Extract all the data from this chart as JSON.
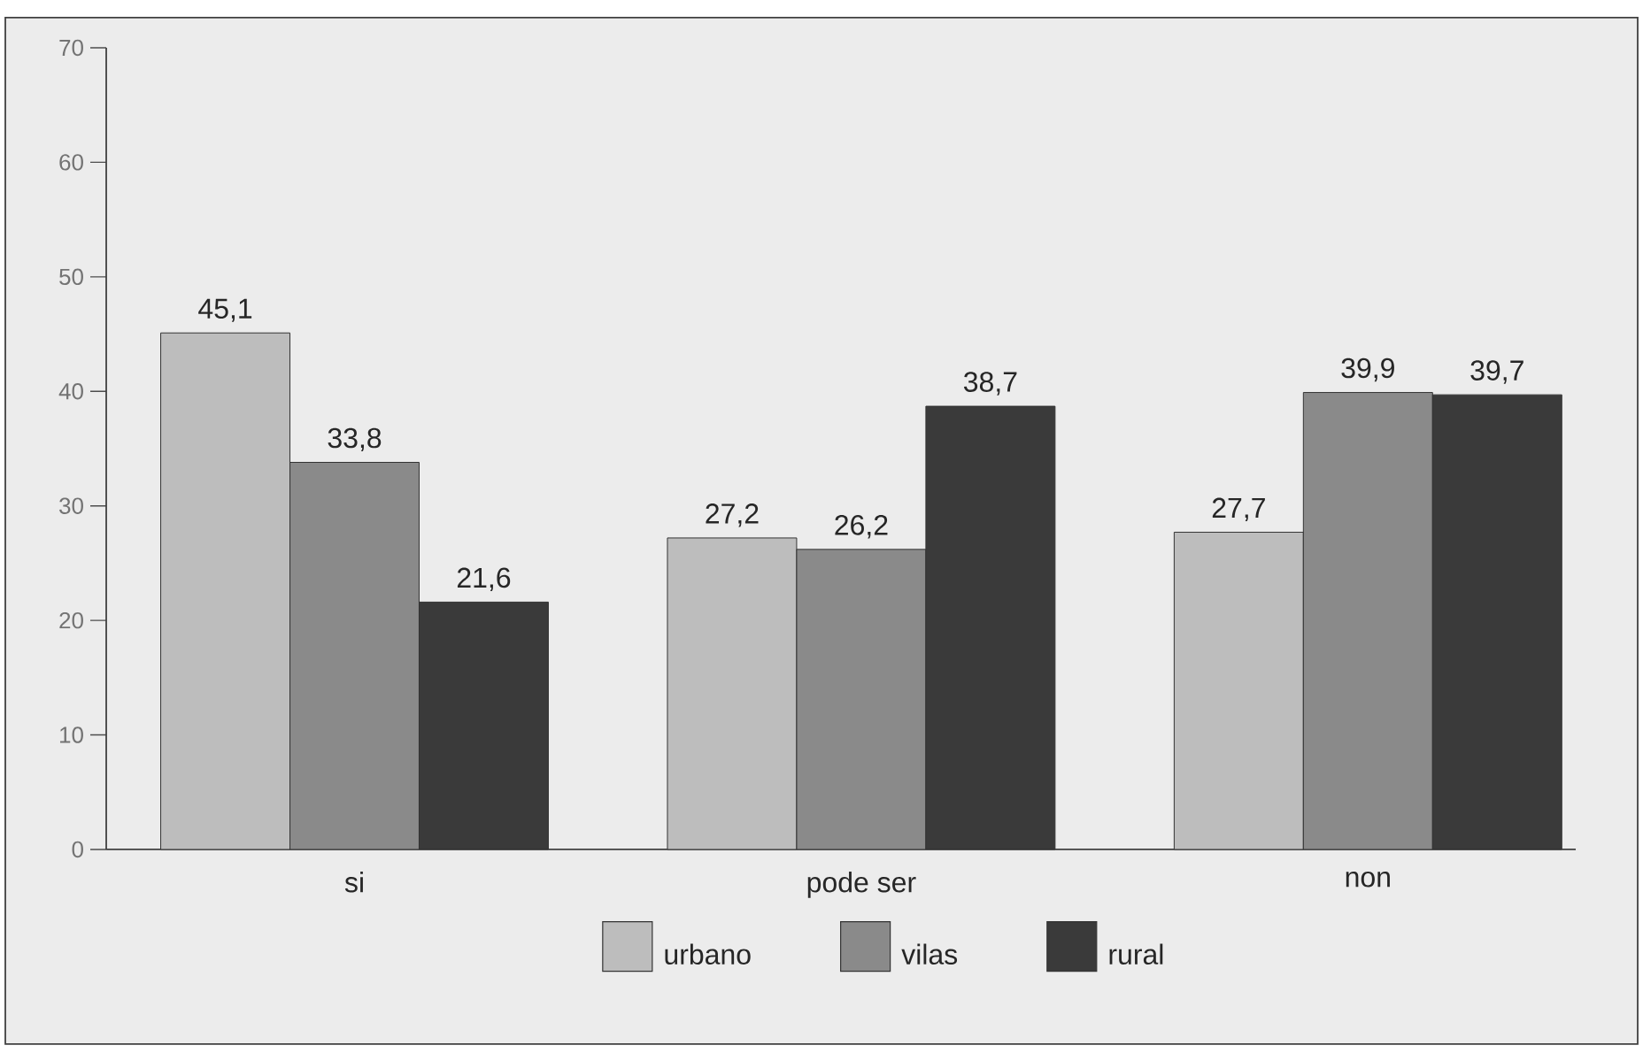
{
  "chart_data": {
    "type": "bar",
    "categories": [
      "si",
      "pode ser",
      "non"
    ],
    "series": [
      {
        "name": "urbano",
        "color": "#bdbdbd",
        "values": [
          45.1,
          27.2,
          27.7
        ],
        "value_labels": [
          "45,1",
          "27,2",
          "27,7"
        ]
      },
      {
        "name": "vilas",
        "color": "#8a8a8a",
        "values": [
          33.8,
          26.2,
          39.9
        ],
        "value_labels": [
          "33,8",
          "26,2",
          "39,9"
        ]
      },
      {
        "name": "rural",
        "color": "#3a3a3a",
        "values": [
          21.6,
          38.7,
          39.7
        ],
        "value_labels": [
          "21,6",
          "38,7",
          "39,7"
        ]
      }
    ],
    "ylim": [
      0,
      70
    ],
    "yticks": [
      0,
      10,
      20,
      30,
      40,
      50,
      60,
      70
    ],
    "legend": "bottom"
  }
}
